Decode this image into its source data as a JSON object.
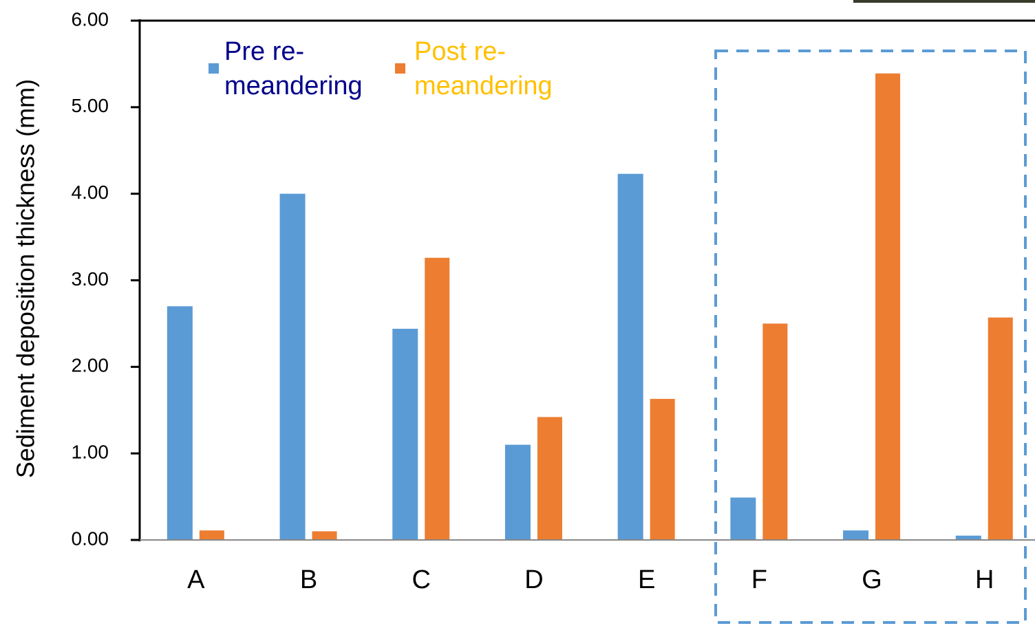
{
  "chart_data": {
    "type": "bar",
    "y_label": "Sediment deposition thickness (mm)",
    "categories": [
      "A",
      "B",
      "C",
      "D",
      "E",
      "F",
      "G",
      "H"
    ],
    "series": [
      {
        "name": "Pre re-\nmeandering",
        "color": "#5b9bd5",
        "label_color": "#00008b",
        "values": [
          2.7,
          4.0,
          2.44,
          1.1,
          4.23,
          0.49,
          0.11,
          0.05
        ]
      },
      {
        "name": "Post re-\nmeandering",
        "color": "#ed7d31",
        "label_color": "#ffc000",
        "values": [
          0.11,
          0.1,
          3.26,
          1.42,
          1.63,
          2.5,
          5.39,
          2.57
        ]
      }
    ],
    "ylim": [
      0,
      6
    ],
    "yticks": [
      {
        "value": 0,
        "label": "0.00"
      },
      {
        "value": 1,
        "label": "1.00"
      },
      {
        "value": 2,
        "label": "2.00"
      },
      {
        "value": 3,
        "label": "3.00"
      },
      {
        "value": 4,
        "label": "4.00"
      },
      {
        "value": 5,
        "label": "5.00"
      },
      {
        "value": 6,
        "label": "6.00"
      }
    ]
  }
}
